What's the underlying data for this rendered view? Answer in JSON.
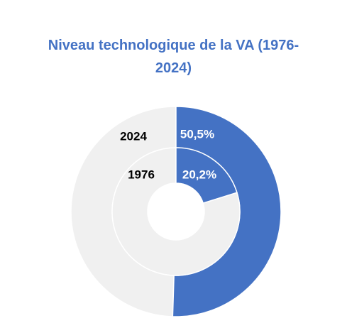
{
  "chart_data": {
    "type": "pie",
    "title_lines": [
      "Niveau technologique  de la VA (1976-",
      "2024)"
    ],
    "rings": [
      {
        "name": "2024",
        "value": 50.5,
        "value_label": "50,5%"
      },
      {
        "name": "1976",
        "value": 20.2,
        "value_label": "20,2%"
      }
    ],
    "colors": {
      "filled": "#4472c4",
      "remainder": "#f0f0f0",
      "title": "#4472c4",
      "value_label": "#ffffff",
      "ring_label": "#000000"
    },
    "legend": "none"
  }
}
